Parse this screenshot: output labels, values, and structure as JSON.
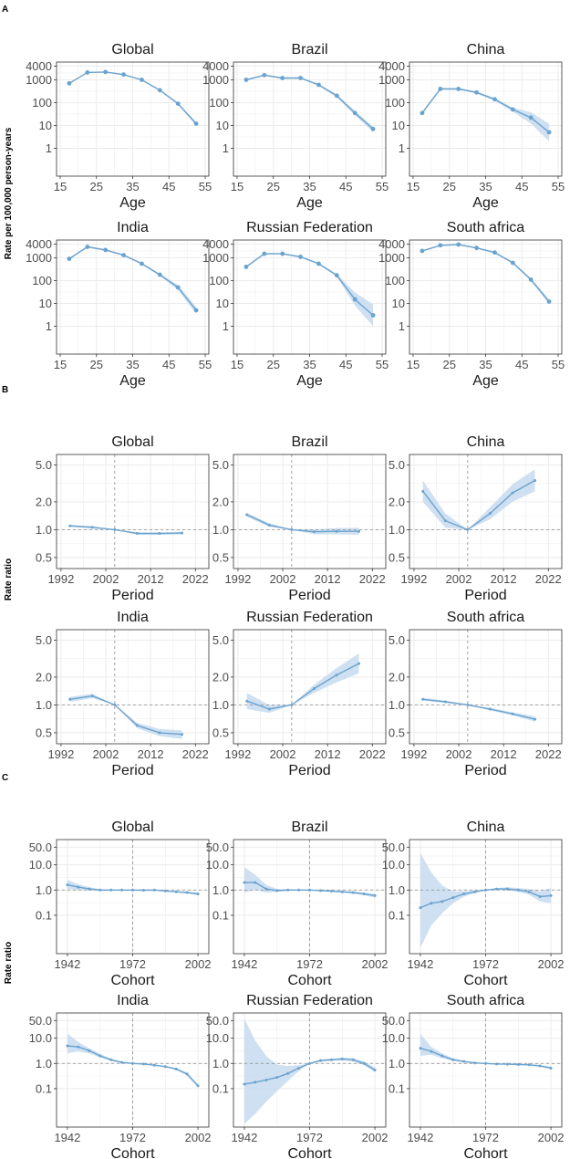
{
  "colors": {
    "line": "#6BA3CF",
    "ribbon": "#C6DBEF",
    "grid": "#EBEBEB",
    "frame": "#333333",
    "ref": "#8C8C8C"
  },
  "sections": [
    {
      "label": "A",
      "ylabel": "Rate per 100,000 person-years",
      "xlabel": "Age",
      "xlim": [
        14,
        56
      ],
      "ylim_log": [
        0.06,
        6000
      ],
      "x_ticks": [
        15,
        25,
        35,
        45,
        55
      ],
      "y_ticks": [
        1,
        10,
        100,
        1000,
        4000
      ],
      "y_tick_labels": [
        "1",
        "10",
        "100",
        "1000",
        "4000"
      ],
      "ref_x": null,
      "ref_y": null,
      "points": true,
      "panels": [
        {
          "title": "Global",
          "x": [
            17.5,
            22.5,
            27.5,
            32.5,
            37.5,
            42.5,
            47.5,
            52.5
          ],
          "y": [
            700,
            2100,
            2200,
            1700,
            1000,
            350,
            90,
            12
          ],
          "lo": [
            650,
            2000,
            2100,
            1600,
            940,
            320,
            80,
            10
          ],
          "hi": [
            750,
            2200,
            2300,
            1800,
            1060,
            380,
            100,
            14
          ]
        },
        {
          "title": "Brazil",
          "x": [
            17.5,
            22.5,
            27.5,
            32.5,
            37.5,
            42.5,
            47.5,
            52.5
          ],
          "y": [
            1000,
            1600,
            1200,
            1200,
            600,
            200,
            35,
            7
          ],
          "lo": [
            900,
            1500,
            1100,
            1100,
            540,
            170,
            28,
            5
          ],
          "hi": [
            1100,
            1700,
            1300,
            1300,
            660,
            230,
            44,
            9
          ]
        },
        {
          "title": "China",
          "x": [
            17.5,
            22.5,
            27.5,
            32.5,
            37.5,
            42.5,
            47.5,
            52.5
          ],
          "y": [
            35,
            400,
            400,
            280,
            140,
            50,
            22,
            5
          ],
          "lo": [
            30,
            360,
            360,
            250,
            120,
            40,
            12,
            2
          ],
          "hi": [
            40,
            440,
            440,
            310,
            160,
            60,
            38,
            12
          ]
        },
        {
          "title": "India",
          "x": [
            17.5,
            22.5,
            27.5,
            32.5,
            37.5,
            42.5,
            47.5,
            52.5
          ],
          "y": [
            900,
            3000,
            2200,
            1300,
            550,
            180,
            50,
            5
          ],
          "lo": [
            800,
            2800,
            2000,
            1200,
            500,
            160,
            38,
            3.5
          ],
          "hi": [
            1000,
            3200,
            2400,
            1400,
            600,
            200,
            65,
            7
          ]
        },
        {
          "title": "Russian Federation",
          "x": [
            17.5,
            22.5,
            27.5,
            32.5,
            37.5,
            42.5,
            47.5,
            52.5
          ],
          "y": [
            400,
            1500,
            1500,
            1100,
            550,
            170,
            15,
            3
          ],
          "lo": [
            360,
            1400,
            1400,
            1000,
            500,
            150,
            8,
            1
          ],
          "hi": [
            440,
            1600,
            1600,
            1200,
            600,
            190,
            30,
            9
          ]
        },
        {
          "title": "South africa",
          "x": [
            17.5,
            22.5,
            27.5,
            32.5,
            37.5,
            42.5,
            47.5,
            52.5
          ],
          "y": [
            2000,
            3500,
            3800,
            2700,
            1700,
            600,
            110,
            12
          ],
          "lo": [
            1850,
            3300,
            3600,
            2500,
            1550,
            540,
            95,
            9
          ],
          "hi": [
            2150,
            3700,
            4000,
            2900,
            1850,
            660,
            125,
            15
          ]
        }
      ]
    },
    {
      "label": "B",
      "ylabel": "Rate ratio",
      "xlabel": "Period",
      "xlim": [
        1991,
        2025
      ],
      "ylim_log": [
        0.38,
        6.5
      ],
      "x_ticks": [
        1992,
        2002,
        2012,
        2022
      ],
      "y_ticks": [
        0.5,
        1.0,
        2.0,
        5.0
      ],
      "y_tick_labels": [
        "0.5",
        "1.0",
        "2.0",
        "5.0"
      ],
      "ref_x": 2004,
      "ref_y": 1,
      "points": false,
      "panels": [
        {
          "title": "Global",
          "x": [
            1994,
            1999,
            2004,
            2009,
            2014,
            2019
          ],
          "y": [
            1.1,
            1.06,
            1.0,
            0.91,
            0.91,
            0.92
          ],
          "lo": [
            1.07,
            1.03,
            1.0,
            0.88,
            0.88,
            0.89
          ],
          "hi": [
            1.13,
            1.09,
            1.0,
            0.94,
            0.94,
            0.95
          ]
        },
        {
          "title": "Brazil",
          "x": [
            1994,
            1999,
            2004,
            2009,
            2014,
            2019
          ],
          "y": [
            1.45,
            1.12,
            1.0,
            0.95,
            0.96,
            0.96
          ],
          "lo": [
            1.38,
            1.07,
            1.0,
            0.89,
            0.89,
            0.88
          ],
          "hi": [
            1.52,
            1.17,
            1.0,
            1.01,
            1.04,
            1.05
          ]
        },
        {
          "title": "China",
          "x": [
            1994,
            1999,
            2004,
            2009,
            2014,
            2019
          ],
          "y": [
            2.6,
            1.25,
            1.0,
            1.5,
            2.5,
            3.4
          ],
          "lo": [
            2.0,
            1.05,
            1.0,
            1.3,
            2.0,
            2.6
          ],
          "hi": [
            3.4,
            1.5,
            1.0,
            1.75,
            3.1,
            4.5
          ]
        },
        {
          "title": "India",
          "x": [
            1994,
            1999,
            2004,
            2009,
            2014,
            2019
          ],
          "y": [
            1.15,
            1.25,
            1.0,
            0.6,
            0.5,
            0.48
          ],
          "lo": [
            1.08,
            1.18,
            1.0,
            0.56,
            0.46,
            0.43
          ],
          "hi": [
            1.22,
            1.32,
            1.0,
            0.64,
            0.55,
            0.53
          ]
        },
        {
          "title": "Russian Federation",
          "x": [
            1994,
            1999,
            2004,
            2009,
            2014,
            2019
          ],
          "y": [
            1.1,
            0.9,
            1.0,
            1.5,
            2.1,
            2.8
          ],
          "lo": [
            0.9,
            0.82,
            1.0,
            1.35,
            1.75,
            2.2
          ],
          "hi": [
            1.35,
            0.99,
            1.0,
            1.65,
            2.5,
            3.6
          ]
        },
        {
          "title": "South africa",
          "x": [
            1994,
            1999,
            2004,
            2009,
            2014,
            2019
          ],
          "y": [
            1.15,
            1.08,
            1.0,
            0.9,
            0.8,
            0.7
          ],
          "lo": [
            1.11,
            1.05,
            1.0,
            0.87,
            0.77,
            0.66
          ],
          "hi": [
            1.19,
            1.11,
            1.0,
            0.93,
            0.83,
            0.75
          ]
        }
      ]
    },
    {
      "label": "C",
      "ylabel": "Rate ratio",
      "xlabel": "Cohort",
      "xlim": [
        1937,
        2007
      ],
      "ylim_log": [
        0.003,
        100
      ],
      "x_ticks": [
        1942,
        1972,
        2002
      ],
      "y_ticks": [
        0.1,
        1.0,
        10.0,
        50.0
      ],
      "y_tick_labels": [
        "0.1",
        "1.0",
        "10.0",
        "50.0"
      ],
      "ref_x": 1972,
      "ref_y": 1,
      "points": false,
      "panels": [
        {
          "title": "Global",
          "x": [
            1942,
            1947,
            1952,
            1957,
            1962,
            1967,
            1972,
            1977,
            1982,
            1987,
            1992,
            1997,
            2002
          ],
          "y": [
            1.6,
            1.3,
            1.1,
            1.0,
            1.0,
            1.0,
            1.0,
            0.98,
            1.0,
            0.92,
            0.85,
            0.8,
            0.7
          ],
          "lo": [
            1.1,
            1.0,
            0.95,
            0.92,
            0.94,
            0.96,
            1.0,
            0.94,
            0.95,
            0.87,
            0.8,
            0.74,
            0.62
          ],
          "hi": [
            2.5,
            1.7,
            1.3,
            1.1,
            1.06,
            1.04,
            1.0,
            1.02,
            1.05,
            0.97,
            0.9,
            0.86,
            0.8
          ]
        },
        {
          "title": "Brazil",
          "x": [
            1942,
            1947,
            1952,
            1957,
            1962,
            1967,
            1972,
            1977,
            1982,
            1987,
            1992,
            1997,
            2002
          ],
          "y": [
            2.0,
            2.0,
            1.1,
            0.95,
            1.0,
            1.0,
            1.0,
            0.95,
            0.9,
            0.85,
            0.8,
            0.7,
            0.6
          ],
          "lo": [
            0.8,
            1.0,
            0.8,
            0.85,
            0.92,
            0.95,
            1.0,
            0.9,
            0.84,
            0.78,
            0.72,
            0.62,
            0.5
          ],
          "hi": [
            8.0,
            4.0,
            1.6,
            1.1,
            1.1,
            1.05,
            1.0,
            1.0,
            0.96,
            0.92,
            0.88,
            0.8,
            0.72
          ]
        },
        {
          "title": "China",
          "x": [
            1942,
            1947,
            1952,
            1957,
            1962,
            1967,
            1972,
            1977,
            1982,
            1987,
            1992,
            1997,
            2002
          ],
          "y": [
            0.2,
            0.3,
            0.35,
            0.5,
            0.7,
            0.85,
            1.0,
            1.1,
            1.1,
            1.0,
            0.85,
            0.55,
            0.6
          ],
          "lo": [
            0.005,
            0.04,
            0.12,
            0.3,
            0.55,
            0.75,
            1.0,
            1.0,
            0.95,
            0.85,
            0.65,
            0.35,
            0.3
          ],
          "hi": [
            30.0,
            5.0,
            1.5,
            0.9,
            0.9,
            0.95,
            1.0,
            1.2,
            1.3,
            1.2,
            1.1,
            0.9,
            1.2
          ]
        },
        {
          "title": "India",
          "x": [
            1942,
            1947,
            1952,
            1957,
            1962,
            1967,
            1972,
            1977,
            1982,
            1987,
            1992,
            1997,
            2002
          ],
          "y": [
            5.0,
            4.5,
            3.2,
            2.0,
            1.4,
            1.1,
            1.0,
            0.95,
            0.85,
            0.75,
            0.6,
            0.38,
            0.13
          ],
          "lo": [
            2.5,
            3.0,
            2.5,
            1.7,
            1.25,
            1.02,
            1.0,
            0.9,
            0.8,
            0.7,
            0.55,
            0.33,
            0.11
          ],
          "hi": [
            15.0,
            7.0,
            4.0,
            2.4,
            1.55,
            1.18,
            1.0,
            1.0,
            0.9,
            0.8,
            0.66,
            0.44,
            0.15
          ]
        },
        {
          "title": "Russian Federation",
          "x": [
            1942,
            1947,
            1952,
            1957,
            1962,
            1967,
            1972,
            1977,
            1982,
            1987,
            1992,
            1997,
            2002
          ],
          "y": [
            0.15,
            0.18,
            0.22,
            0.28,
            0.4,
            0.65,
            1.0,
            1.3,
            1.4,
            1.5,
            1.4,
            1.0,
            0.55
          ],
          "lo": [
            0.004,
            0.01,
            0.03,
            0.08,
            0.2,
            0.5,
            1.0,
            1.15,
            1.25,
            1.3,
            1.2,
            0.85,
            0.45
          ],
          "hi": [
            60.0,
            8.0,
            2.0,
            0.9,
            0.8,
            0.85,
            1.0,
            1.45,
            1.55,
            1.7,
            1.6,
            1.2,
            0.7
          ]
        },
        {
          "title": "South africa",
          "x": [
            1942,
            1947,
            1952,
            1957,
            1962,
            1967,
            1972,
            1977,
            1982,
            1987,
            1992,
            1997,
            2002
          ],
          "y": [
            4.0,
            3.0,
            2.0,
            1.4,
            1.2,
            1.05,
            1.0,
            0.95,
            0.93,
            0.9,
            0.88,
            0.8,
            0.65
          ],
          "lo": [
            2.0,
            2.2,
            1.6,
            1.25,
            1.1,
            1.0,
            1.0,
            0.92,
            0.9,
            0.86,
            0.83,
            0.74,
            0.58
          ],
          "hi": [
            15.0,
            4.5,
            2.5,
            1.6,
            1.3,
            1.1,
            1.0,
            0.98,
            0.97,
            0.94,
            0.93,
            0.87,
            0.74
          ]
        }
      ]
    }
  ]
}
